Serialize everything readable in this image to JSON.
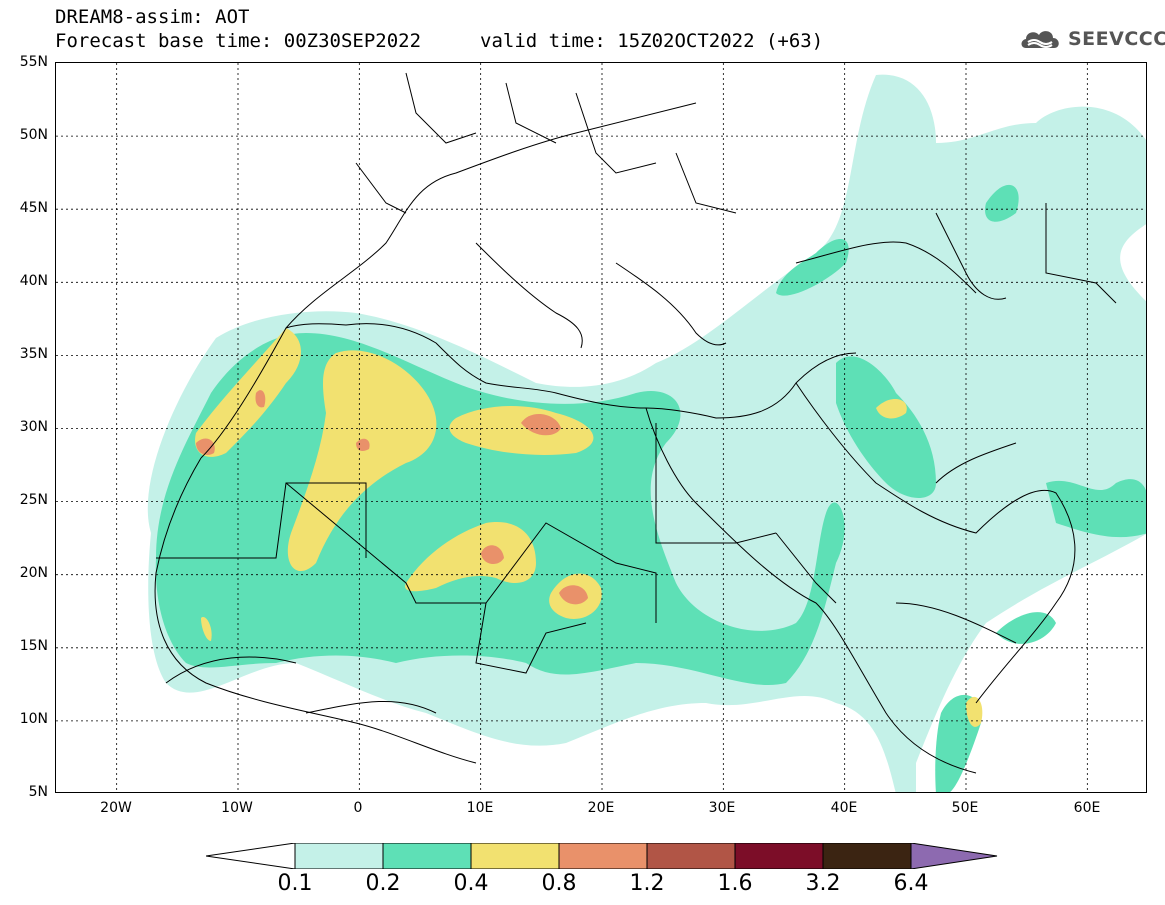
{
  "header": {
    "title": "DREAM8-assim: AOT",
    "base_time": "Forecast base time: 00Z30SEP2022",
    "valid_time": "valid time: 15Z02OCT2022 (+63)",
    "logo_text": "SEEVCCC",
    "logo_icon": "cloud-icon"
  },
  "map": {
    "lon_range": [
      -25,
      65
    ],
    "lat_range": [
      5,
      55
    ],
    "lat_labels": [
      "55N",
      "50N",
      "45N",
      "40N",
      "35N",
      "30N",
      "25N",
      "20N",
      "15N",
      "10N",
      "5N"
    ],
    "lon_labels": [
      "20W",
      "10W",
      "0",
      "10E",
      "20E",
      "30E",
      "40E",
      "50E",
      "60E"
    ],
    "grid": true
  },
  "colorbar": {
    "levels": [
      "0.1",
      "0.2",
      "0.4",
      "0.8",
      "1.2",
      "1.6",
      "3.2",
      "6.4"
    ],
    "colors": [
      "#c4f1e8",
      "#5ee0b6",
      "#f2e170",
      "#e9916a",
      "#b15546",
      "#7c0d28",
      "#3b2412",
      "#8d6ab0"
    ]
  }
}
